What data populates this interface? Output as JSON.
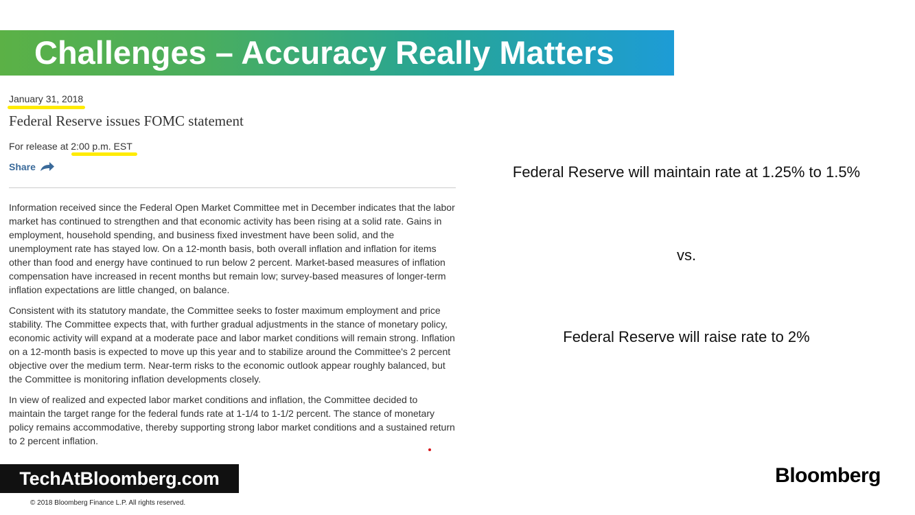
{
  "slide": {
    "title": "Challenges – Accuracy Really Matters"
  },
  "press_release": {
    "date": "January 31, 2018",
    "headline": "Federal Reserve issues FOMC statement",
    "release_prefix": "For release at ",
    "release_time": "2:00 p.m. EST",
    "share_label": "Share",
    "paragraphs": [
      "Information received since the Federal Open Market Committee met in December indicates that the labor market has continued to strengthen and that economic activity has been rising at a solid rate. Gains in employment, household spending, and business fixed investment have been solid, and the unemployment rate has stayed low. On a 12-month basis, both overall inflation and inflation for items other than food and energy have continued to run below 2 percent. Market-based measures of inflation compensation have increased in recent months but remain low; survey-based measures of longer-term inflation expectations are little changed, on balance.",
      "Consistent with its statutory mandate, the Committee seeks to foster maximum employment and price stability. The Committee expects that, with further gradual adjustments in the stance of monetary policy, economic activity will expand at a moderate pace and labor market conditions will remain strong. Inflation on a 12-month basis is expected to move up this year and to stabilize around the Committee's 2 percent objective over the medium term. Near-term risks to the economic outlook appear roughly balanced, but the Committee is monitoring inflation developments closely."
    ],
    "paragraph3_before": "In view of realized and expected labor market conditions and inflation, the Committee decided to maintain the target range for the federal funds rate at 1-1/4 to 1-1/2 percent. The stance of monetary policy remains accommodative, thereby supporting strong labor market conditions and a sustained ",
    "paragraph3_highlight": "return to 2 percent",
    "paragraph3_after": " inflation."
  },
  "comparison": {
    "option_a": "Federal Reserve will maintain rate at 1.25% to 1.5%",
    "separator": "vs.",
    "option_b": "Federal Reserve will raise rate to 2%"
  },
  "footer": {
    "site": "TechAtBloomberg.com",
    "copyright": "© 2018  Bloomberg  Finance L.P.  All rights reserved.",
    "brand": "Bloomberg"
  },
  "colors": {
    "highlight_yellow": "#ffeb00",
    "underline_red": "#d8161c",
    "share_blue": "#3a6a9a"
  }
}
